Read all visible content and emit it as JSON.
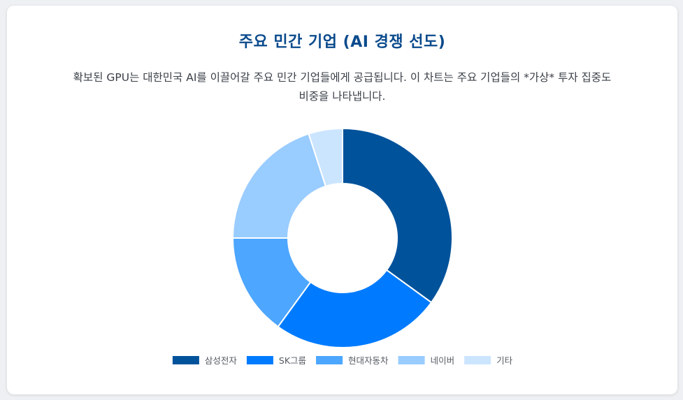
{
  "card": {
    "title": "주요 민간 기업 (AI 경쟁 선도)",
    "description_line1": "확보된 GPU는 대한민국 AI를 이끌어갈 주요 민간 기업들에게 공급됩니다. 이 차트는 주요 기업들의 *가상* 투자 집중도",
    "description_line2": "비중을 나타냅니다."
  },
  "chart_data": {
    "type": "doughnut",
    "categories": [
      "삼성전자",
      "SK그룹",
      "현대자동차",
      "네이버",
      "기타"
    ],
    "values": [
      35,
      25,
      15,
      20,
      5
    ],
    "colors": [
      "#00529b",
      "#007bff",
      "#4da6ff",
      "#99ccff",
      "#cce5ff"
    ],
    "legend": "bottom",
    "title": ""
  }
}
